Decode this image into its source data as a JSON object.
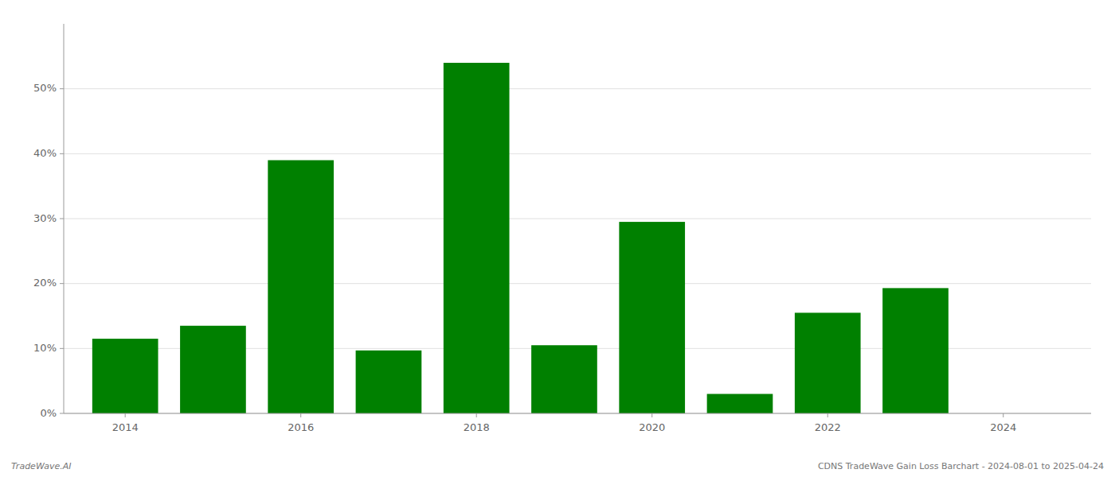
{
  "chart_data": {
    "type": "bar",
    "x": [
      2014,
      2015,
      2016,
      2017,
      2018,
      2019,
      2020,
      2021,
      2022,
      2023,
      2024
    ],
    "values": [
      0.115,
      0.135,
      0.39,
      0.097,
      0.54,
      0.105,
      0.295,
      0.03,
      0.155,
      0.193,
      0.0
    ],
    "color": "#008000",
    "xlim": [
      2013.3,
      2025.0
    ],
    "xticks": [
      2014,
      2016,
      2018,
      2020,
      2022,
      2024
    ],
    "ylim": [
      0,
      0.6
    ],
    "yticks": [
      {
        "value": 0.0,
        "label": "0%"
      },
      {
        "value": 0.1,
        "label": "10%"
      },
      {
        "value": 0.2,
        "label": "20%"
      },
      {
        "value": 0.3,
        "label": "30%"
      },
      {
        "value": 0.4,
        "label": "40%"
      },
      {
        "value": 0.5,
        "label": "50%"
      }
    ],
    "grid": true,
    "annotations": [
      "TradeWave.AI",
      "CDNS TradeWave Gain Loss Barchart - 2024-08-01 to 2025-04-24"
    ]
  }
}
